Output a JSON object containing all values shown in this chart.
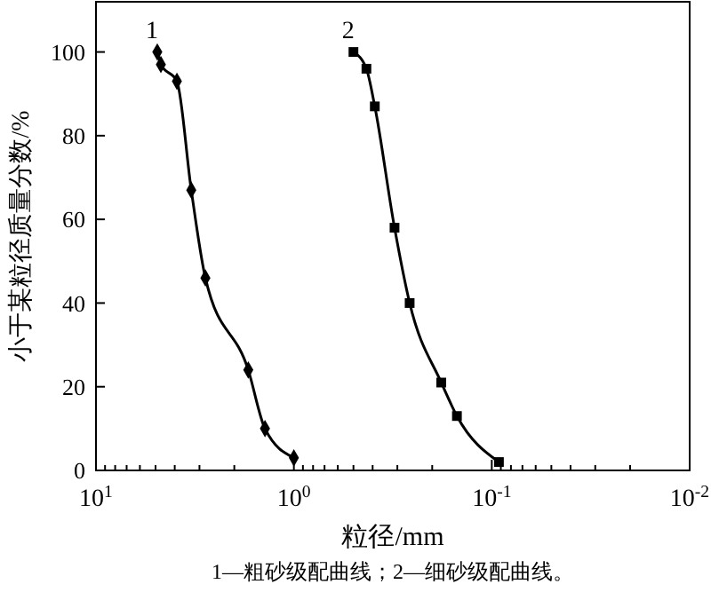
{
  "chart_data": {
    "type": "line",
    "xlabel": "粒径/mm",
    "ylabel": "小于某粒径质量分数/%",
    "log": "x",
    "xlim": [
      10,
      0.01
    ],
    "ylim": [
      0,
      112
    ],
    "xticks": [
      {
        "value": 10,
        "label": "10$^{1}$"
      },
      {
        "value": 1,
        "label": "10$^{0}$"
      },
      {
        "value": 0.1,
        "label": "10$^{-1}$"
      },
      {
        "value": 0.01,
        "label": "10$^{-2}$"
      }
    ],
    "yticks": [
      0,
      20,
      40,
      60,
      80,
      100
    ],
    "grid": false,
    "line_style": "solid",
    "series": [
      {
        "name": "1",
        "color": "#000000",
        "marker": "diamond",
        "x": [
          4.9,
          4.7,
          3.9,
          3.3,
          2.8,
          1.7,
          1.4,
          1.0
        ],
        "values": [
          100,
          97,
          93,
          67,
          46,
          24,
          10,
          3
        ]
      },
      {
        "name": "2",
        "color": "#000000",
        "marker": "square",
        "x": [
          0.5,
          0.43,
          0.39,
          0.31,
          0.26,
          0.18,
          0.15,
          0.092
        ],
        "values": [
          100,
          96,
          87,
          58,
          40,
          21,
          13,
          2
        ]
      }
    ],
    "annotations": [
      "1—粗砂级配曲线；2—细砂级配曲线。"
    ]
  }
}
